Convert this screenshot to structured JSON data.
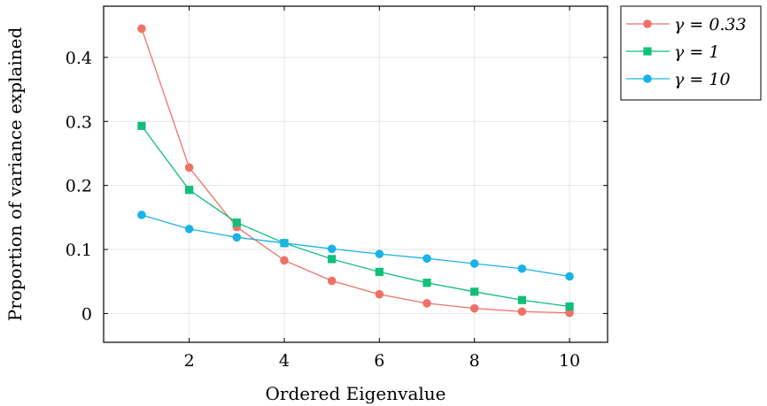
{
  "chart_data": {
    "type": "line",
    "title": "",
    "xlabel": "Ordered Eigenvalue",
    "ylabel": "Proportion of variance explained",
    "xlim": [
      0.2,
      10.8
    ],
    "ylim": [
      -0.045,
      0.48
    ],
    "xticks": [
      2,
      4,
      6,
      8,
      10
    ],
    "xtick_labels": [
      "2",
      "4",
      "6",
      "8",
      "10"
    ],
    "yticks": [
      0,
      0.1,
      0.2,
      0.3,
      0.4
    ],
    "ytick_labels": [
      "0",
      "0.1",
      "0.2",
      "0.3",
      "0.4"
    ],
    "grid": true,
    "legend_position": "outside-top-right",
    "x": [
      1,
      2,
      3,
      4,
      5,
      6,
      7,
      8,
      9,
      10
    ],
    "series": [
      {
        "name": "γ = 0.33",
        "color": "#f07167",
        "marker": "circle",
        "values": [
          0.445,
          0.228,
          0.135,
          0.083,
          0.051,
          0.03,
          0.016,
          0.008,
          0.003,
          0.001
        ]
      },
      {
        "name": "γ = 1",
        "color": "#0fbf7a",
        "marker": "square",
        "values": [
          0.293,
          0.193,
          0.142,
          0.11,
          0.085,
          0.065,
          0.048,
          0.034,
          0.021,
          0.011
        ]
      },
      {
        "name": "γ = 10",
        "color": "#1ab3e8",
        "marker": "circle",
        "values": [
          0.154,
          0.132,
          0.119,
          0.11,
          0.101,
          0.093,
          0.086,
          0.078,
          0.07,
          0.058
        ]
      }
    ]
  }
}
